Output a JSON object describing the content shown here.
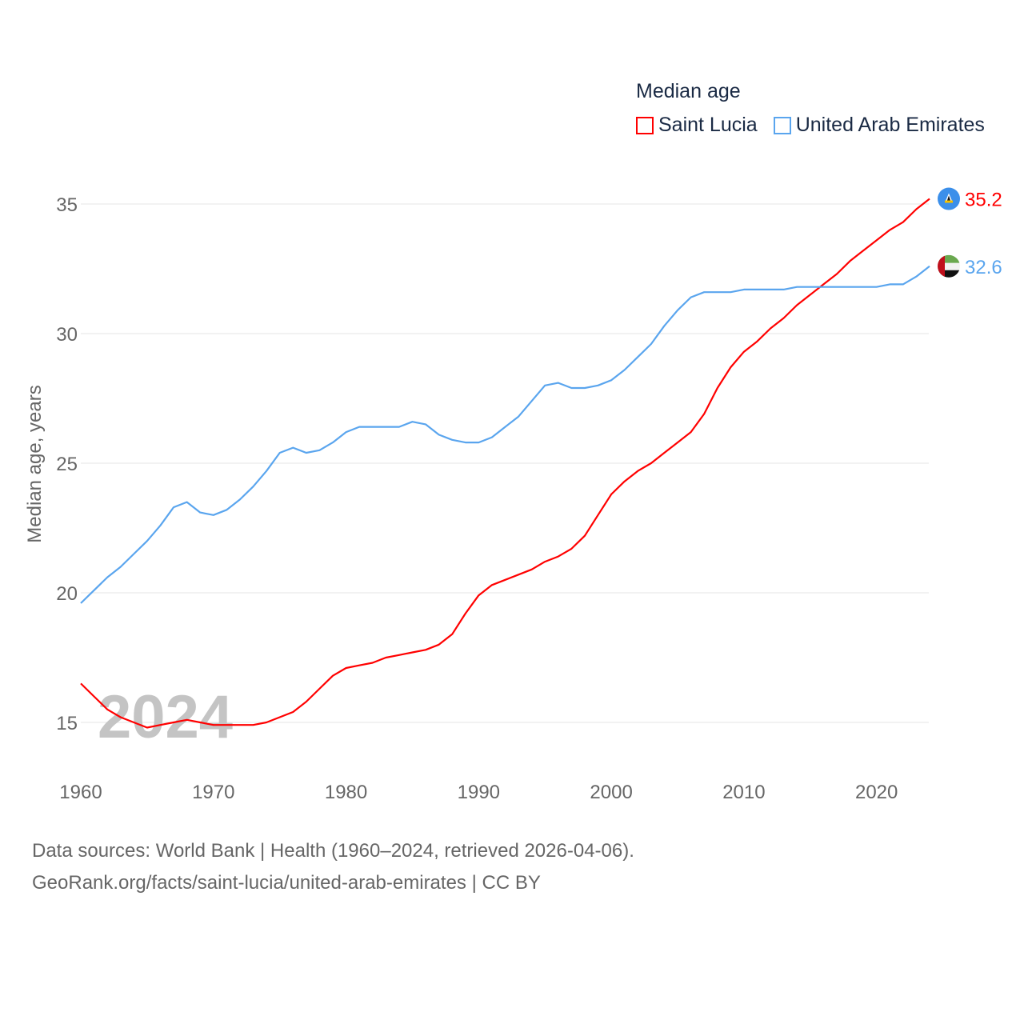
{
  "chart_data": {
    "type": "line",
    "title": "Median age",
    "ylabel": "Median age, years",
    "xlabel": "",
    "xlim": [
      1960,
      2024
    ],
    "ylim": [
      13,
      37
    ],
    "yticks": [
      15,
      20,
      25,
      30,
      35
    ],
    "xticks": [
      1960,
      1970,
      1980,
      1990,
      2000,
      2010,
      2020
    ],
    "grid": true,
    "legend_position": "top-right",
    "year_label": "2024",
    "x_start": 1960,
    "series": [
      {
        "name": "Saint Lucia",
        "color": "#ff0000",
        "end_label": "35.2",
        "flag": "saint-lucia-flag",
        "values": [
          16.5,
          16.0,
          15.5,
          15.2,
          15.0,
          14.8,
          14.9,
          15.0,
          15.1,
          15.0,
          14.9,
          14.9,
          14.9,
          14.9,
          15.0,
          15.2,
          15.4,
          15.8,
          16.3,
          16.8,
          17.1,
          17.2,
          17.3,
          17.5,
          17.6,
          17.7,
          17.8,
          18.0,
          18.4,
          19.2,
          19.9,
          20.3,
          20.5,
          20.7,
          20.9,
          21.2,
          21.4,
          21.7,
          22.2,
          23.0,
          23.8,
          24.3,
          24.7,
          25.0,
          25.4,
          25.8,
          26.2,
          26.9,
          27.9,
          28.7,
          29.3,
          29.7,
          30.2,
          30.6,
          31.1,
          31.5,
          31.9,
          32.3,
          32.8,
          33.2,
          33.6,
          34.0,
          34.3,
          34.8,
          35.2
        ]
      },
      {
        "name": "United Arab Emirates",
        "color": "#5aa5ee",
        "end_label": "32.6",
        "flag": "uae-flag",
        "values": [
          19.6,
          20.1,
          20.6,
          21.0,
          21.5,
          22.0,
          22.6,
          23.3,
          23.5,
          23.1,
          23.0,
          23.2,
          23.6,
          24.1,
          24.7,
          25.4,
          25.6,
          25.4,
          25.5,
          25.8,
          26.2,
          26.4,
          26.4,
          26.4,
          26.4,
          26.6,
          26.5,
          26.1,
          25.9,
          25.8,
          25.8,
          26.0,
          26.4,
          26.8,
          27.4,
          28.0,
          28.1,
          27.9,
          27.9,
          28.0,
          28.2,
          28.6,
          29.1,
          29.6,
          30.3,
          30.9,
          31.4,
          31.6,
          31.6,
          31.6,
          31.7,
          31.7,
          31.7,
          31.7,
          31.8,
          31.8,
          31.8,
          31.8,
          31.8,
          31.8,
          31.8,
          31.9,
          31.9,
          32.2,
          32.6
        ]
      }
    ]
  },
  "footer": {
    "line1": "Data sources: World Bank | Health (1960–2024, retrieved 2026-04-06).",
    "line2": "GeoRank.org/facts/saint-lucia/united-arab-emirates | CC BY"
  }
}
